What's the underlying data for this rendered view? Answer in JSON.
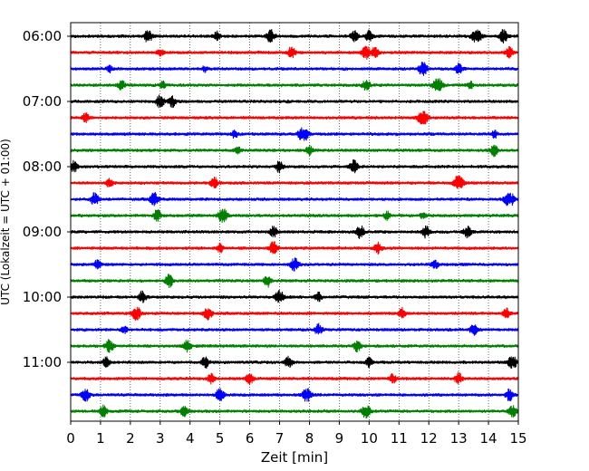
{
  "chart_data": {
    "type": "line",
    "title": "",
    "xlabel": "Zeit  [min]",
    "ylabel": "UTC (Lokalzeit = UTC + 01:00)",
    "xlim": [
      0,
      15
    ],
    "xticks": [
      0,
      1,
      2,
      3,
      4,
      5,
      6,
      7,
      8,
      9,
      10,
      11,
      12,
      13,
      14,
      15
    ],
    "xtick_labels": [
      "0",
      "1",
      "2",
      "3",
      "4",
      "5",
      "6",
      "7",
      "8",
      "9",
      "10",
      "11",
      "12",
      "13",
      "14",
      "15"
    ],
    "ytick_labels": [
      "06:00",
      "07:00",
      "08:00",
      "09:00",
      "10:00",
      "11:00"
    ],
    "grid": "vertical dotted",
    "trace_interval_minutes": 15,
    "series": [
      {
        "color": "#000000",
        "start": "06:00",
        "events": [
          [
            2.6,
            0.35
          ],
          [
            4.9,
            0.25
          ],
          [
            6.7,
            0.35
          ],
          [
            9.5,
            0.3
          ],
          [
            10,
            0.28
          ],
          [
            13.6,
            0.5
          ],
          [
            14.5,
            0.35
          ]
        ]
      },
      {
        "color": "#ff0000",
        "start": "06:15",
        "events": [
          [
            3,
            0.2
          ],
          [
            7.4,
            0.3
          ],
          [
            9.9,
            0.35
          ],
          [
            10.2,
            0.3
          ],
          [
            14.7,
            0.3
          ]
        ]
      },
      {
        "color": "#0000ff",
        "start": "06:30",
        "events": [
          [
            1.3,
            0.18
          ],
          [
            4.5,
            0.15
          ],
          [
            11.8,
            0.4
          ],
          [
            13,
            0.3
          ]
        ]
      },
      {
        "color": "#008000",
        "start": "06:45",
        "events": [
          [
            1.7,
            0.25
          ],
          [
            3.1,
            0.2
          ],
          [
            9.9,
            0.3
          ],
          [
            12.3,
            0.45
          ],
          [
            13.4,
            0.2
          ]
        ]
      },
      {
        "color": "#000000",
        "start": "07:00",
        "events": [
          [
            3,
            0.35
          ],
          [
            3.4,
            0.3
          ]
        ]
      },
      {
        "color": "#ff0000",
        "start": "07:15",
        "events": [
          [
            0.5,
            0.25
          ],
          [
            11.8,
            0.5
          ]
        ]
      },
      {
        "color": "#0000ff",
        "start": "07:30",
        "events": [
          [
            5.5,
            0.2
          ],
          [
            7.8,
            0.5
          ],
          [
            14.2,
            0.2
          ]
        ]
      },
      {
        "color": "#008000",
        "start": "07:45",
        "events": [
          [
            5.6,
            0.2
          ],
          [
            8,
            0.25
          ],
          [
            14.2,
            0.3
          ]
        ]
      },
      {
        "color": "#000000",
        "start": "08:00",
        "events": [
          [
            0.1,
            0.3
          ],
          [
            7,
            0.3
          ],
          [
            9.5,
            0.35
          ]
        ]
      },
      {
        "color": "#ff0000",
        "start": "08:15",
        "events": [
          [
            1.3,
            0.25
          ],
          [
            4.8,
            0.3
          ],
          [
            13,
            0.5
          ]
        ]
      },
      {
        "color": "#0000ff",
        "start": "08:30",
        "events": [
          [
            0.8,
            0.35
          ],
          [
            2.8,
            0.4
          ],
          [
            14.7,
            0.5
          ]
        ]
      },
      {
        "color": "#008000",
        "start": "08:45",
        "events": [
          [
            2.9,
            0.3
          ],
          [
            5.1,
            0.45
          ],
          [
            10.6,
            0.2
          ],
          [
            11.8,
            0.2
          ]
        ]
      },
      {
        "color": "#000000",
        "start": "09:00",
        "events": [
          [
            6.8,
            0.3
          ],
          [
            9.7,
            0.35
          ],
          [
            11.9,
            0.3
          ],
          [
            13.3,
            0.3
          ]
        ]
      },
      {
        "color": "#ff0000",
        "start": "09:15",
        "events": [
          [
            5,
            0.25
          ],
          [
            6.8,
            0.35
          ],
          [
            10.3,
            0.3
          ]
        ]
      },
      {
        "color": "#0000ff",
        "start": "09:30",
        "events": [
          [
            0.9,
            0.25
          ],
          [
            7.5,
            0.35
          ],
          [
            12.2,
            0.25
          ]
        ]
      },
      {
        "color": "#008000",
        "start": "09:45",
        "events": [
          [
            3.3,
            0.35
          ],
          [
            6.6,
            0.3
          ]
        ]
      },
      {
        "color": "#000000",
        "start": "10:00",
        "events": [
          [
            2.4,
            0.3
          ],
          [
            7,
            0.4
          ],
          [
            8.3,
            0.25
          ]
        ]
      },
      {
        "color": "#ff0000",
        "start": "10:15",
        "events": [
          [
            2.2,
            0.4
          ],
          [
            4.6,
            0.35
          ],
          [
            11.1,
            0.3
          ],
          [
            14.6,
            0.25
          ]
        ]
      },
      {
        "color": "#0000ff",
        "start": "10:30",
        "events": [
          [
            1.8,
            0.2
          ],
          [
            8.3,
            0.3
          ],
          [
            13.5,
            0.3
          ]
        ]
      },
      {
        "color": "#008000",
        "start": "10:45",
        "events": [
          [
            1.3,
            0.35
          ],
          [
            3.9,
            0.3
          ],
          [
            9.6,
            0.3
          ]
        ]
      },
      {
        "color": "#000000",
        "start": "11:00",
        "events": [
          [
            1.2,
            0.25
          ],
          [
            4.5,
            0.3
          ],
          [
            7.3,
            0.3
          ],
          [
            10,
            0.25
          ],
          [
            14.8,
            0.4
          ]
        ]
      },
      {
        "color": "#ff0000",
        "start": "11:15",
        "events": [
          [
            4.7,
            0.25
          ],
          [
            6,
            0.3
          ],
          [
            10.8,
            0.25
          ],
          [
            13,
            0.3
          ]
        ]
      },
      {
        "color": "#0000ff",
        "start": "11:30",
        "events": [
          [
            0.5,
            0.35
          ],
          [
            5,
            0.35
          ],
          [
            7.9,
            0.4
          ],
          [
            14.7,
            0.3
          ]
        ]
      },
      {
        "color": "#008000",
        "start": "11:45",
        "events": [
          [
            1.1,
            0.3
          ],
          [
            3.8,
            0.3
          ],
          [
            9.9,
            0.4
          ],
          [
            14.8,
            0.35
          ]
        ]
      }
    ]
  }
}
